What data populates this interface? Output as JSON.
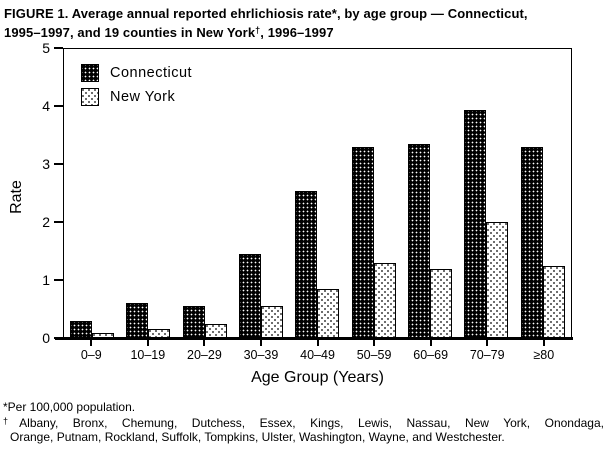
{
  "title": {
    "line1": "FIGURE 1. Average annual reported ehrlichiosis rate*, by age group — Connecticut,",
    "line2_pre": "1995–1997, and 19 counties in New York",
    "line2_sup": "†",
    "line2_post": ", 1996–1997"
  },
  "legend": {
    "items": [
      {
        "label": "Connecticut",
        "swatch": "black-white-dot-grid"
      },
      {
        "label": "New York",
        "swatch": "white-black-dot-stipple"
      }
    ]
  },
  "footnotes": {
    "asterisk_marker": "*",
    "asterisk_text": "Per 100,000 population.",
    "dagger_marker": "†",
    "dagger_line1": "Albany, Bronx, Chemung, Dutchess, Essex, Kings, Lewis, Nassau, New York, Onondaga,",
    "dagger_line2": "Orange, Putnam, Rockland, Suffolk, Tompkins, Ulster, Washington, Wayne, and Westchester."
  },
  "chart_data": {
    "type": "bar",
    "title": "FIGURE 1. Average annual reported ehrlichiosis rate, by age group — Connecticut, 1995–1997, and 19 counties in New York, 1996–1997",
    "categories": [
      "0–9",
      "10–19",
      "20–29",
      "30–39",
      "40–49",
      "50–59",
      "60–69",
      "70–79",
      "≥80"
    ],
    "series": [
      {
        "name": "Connecticut",
        "values": [
          0.3,
          0.6,
          0.55,
          1.45,
          2.55,
          3.3,
          3.35,
          3.95,
          3.3
        ]
      },
      {
        "name": "New York",
        "values": [
          0.08,
          0.15,
          0.25,
          0.55,
          0.85,
          1.3,
          1.2,
          2.0,
          1.25
        ]
      }
    ],
    "xlabel": "Age Group (Years)",
    "ylabel": "Rate",
    "ylim": [
      0,
      5
    ],
    "yticks": [
      "0",
      "1",
      "2",
      "3",
      "4",
      "5"
    ],
    "grid": false,
    "legend_position": "top-left-inside",
    "colors": {
      "connecticut_fill": "#000000",
      "connecticut_dots": "#ffffff",
      "new_york_fill": "#ffffff",
      "new_york_dots": "#000000",
      "axis": "#000000",
      "background": "#ffffff"
    }
  }
}
